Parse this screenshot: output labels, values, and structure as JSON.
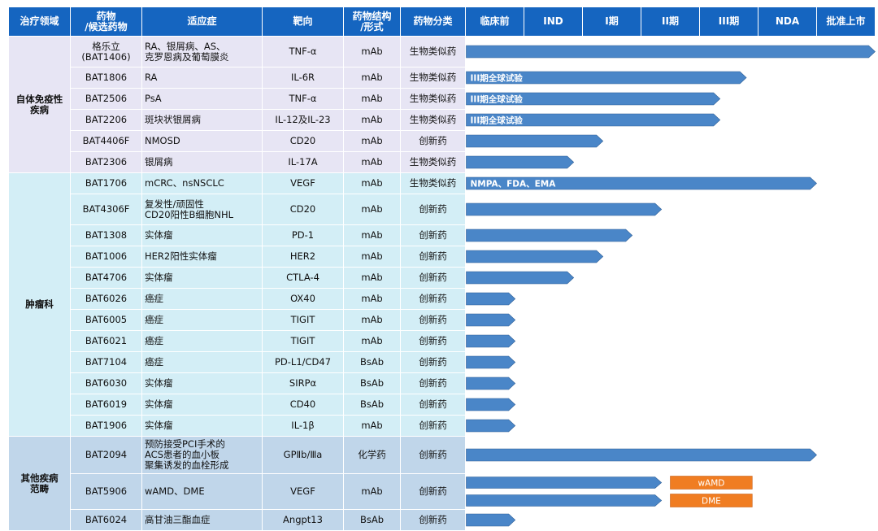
{
  "table": {
    "columns": [
      "治疗领域",
      "药物\n/候选药物",
      "适应症",
      "靶向",
      "药物结构\n/形式",
      "药物分类",
      "临床前",
      "IND",
      "I期",
      "II期",
      "III期",
      "NDA",
      "批准上市"
    ],
    "groups": [
      {
        "area": "自体免疫性\n疾病",
        "cls": "g-auto"
      },
      {
        "area": "肿瘤科",
        "cls": "g-onc"
      },
      {
        "area": "其他疾病\n范畴",
        "cls": "g-oth"
      }
    ],
    "rows": [
      {
        "g": 0,
        "drug": "格乐立\n(BAT1406)",
        "indication": "RA、银屑病、AS、\n克罗恩病及葡萄膜炎",
        "target": "TNF-α",
        "form": "mAb",
        "category": "生物类似药",
        "h": "tall"
      },
      {
        "g": 0,
        "drug": "BAT1806",
        "indication": "RA",
        "target": "IL-6R",
        "form": "mAb",
        "category": "生物类似药"
      },
      {
        "g": 0,
        "drug": "BAT2506",
        "indication": "PsA",
        "target": "TNF-α",
        "form": "mAb",
        "category": "生物类似药"
      },
      {
        "g": 0,
        "drug": "BAT2206",
        "indication": "斑块状银屑病",
        "target": "IL-12及IL-23",
        "form": "mAb",
        "category": "生物类似药"
      },
      {
        "g": 0,
        "drug": "BAT4406F",
        "indication": "NMOSD",
        "target": "CD20",
        "form": "mAb",
        "category": "创新药"
      },
      {
        "g": 0,
        "drug": "BAT2306",
        "indication": "银屑病",
        "target": "IL-17A",
        "form": "mAb",
        "category": "生物类似药"
      },
      {
        "g": 1,
        "drug": "BAT1706",
        "indication": "mCRC、nsNSCLC",
        "target": "VEGF",
        "form": "mAb",
        "category": "生物类似药"
      },
      {
        "g": 1,
        "drug": "BAT4306F",
        "indication": "复发性/顽固性\nCD20阳性B细胞NHL",
        "target": "CD20",
        "form": "mAb",
        "category": "创新药",
        "h": "tall"
      },
      {
        "g": 1,
        "drug": "BAT1308",
        "indication": "实体瘤",
        "target": "PD-1",
        "form": "mAb",
        "category": "创新药"
      },
      {
        "g": 1,
        "drug": "BAT1006",
        "indication": "HER2阳性实体瘤",
        "target": "HER2",
        "form": "mAb",
        "category": "创新药"
      },
      {
        "g": 1,
        "drug": "BAT4706",
        "indication": "实体瘤",
        "target": "CTLA-4",
        "form": "mAb",
        "category": "创新药"
      },
      {
        "g": 1,
        "drug": "BAT6026",
        "indication": "癌症",
        "target": "OX40",
        "form": "mAb",
        "category": "创新药"
      },
      {
        "g": 1,
        "drug": "BAT6005",
        "indication": "癌症",
        "target": "TIGIT",
        "form": "mAb",
        "category": "创新药"
      },
      {
        "g": 1,
        "drug": "BAT6021",
        "indication": "癌症",
        "target": "TIGIT",
        "form": "mAb",
        "category": "创新药"
      },
      {
        "g": 1,
        "drug": "BAT7104",
        "indication": "癌症",
        "target": "PD-L1/CD47",
        "form": "BsAb",
        "category": "创新药"
      },
      {
        "g": 1,
        "drug": "BAT6030",
        "indication": "实体瘤",
        "target": "SIRPα",
        "form": "BsAb",
        "category": "创新药"
      },
      {
        "g": 1,
        "drug": "BAT6019",
        "indication": "实体瘤",
        "target": "CD40",
        "form": "BsAb",
        "category": "创新药"
      },
      {
        "g": 1,
        "drug": "BAT1906",
        "indication": "实体瘤",
        "target": "IL-1β",
        "form": "mAb",
        "category": "创新药"
      },
      {
        "g": 2,
        "drug": "BAT2094",
        "indication": "预防接受PCI手术的\nACS患者的血小板\n聚集诱发的血栓形成",
        "target": "GPⅡb/Ⅲa",
        "form": "化学药",
        "category": "创新药",
        "h": "tall2"
      },
      {
        "g": 2,
        "drug": "BAT5906",
        "indication": "wAMD、DME",
        "target": "VEGF",
        "form": "mAb",
        "category": "创新药",
        "h": "tall3"
      },
      {
        "g": 2,
        "drug": "BAT6024",
        "indication": "高甘油三酯血症",
        "target": "Angpt13",
        "form": "BsAb",
        "category": "创新药"
      }
    ]
  },
  "chart_data": {
    "type": "bar",
    "stages": [
      "临床前",
      "IND",
      "I期",
      "II期",
      "III期",
      "NDA",
      "批准上市"
    ],
    "bars": [
      {
        "row": 0,
        "end": 7.0,
        "label": ""
      },
      {
        "row": 1,
        "end": 4.8,
        "label": "III期全球试验"
      },
      {
        "row": 2,
        "end": 4.35,
        "label": "III期全球试验"
      },
      {
        "row": 3,
        "end": 4.35,
        "label": "III期全球试验"
      },
      {
        "row": 4,
        "end": 2.35,
        "label": ""
      },
      {
        "row": 5,
        "end": 1.85,
        "label": ""
      },
      {
        "row": 6,
        "end": 6.0,
        "label": "NMPA、FDA、EMA"
      },
      {
        "row": 7,
        "end": 3.35,
        "label": ""
      },
      {
        "row": 8,
        "end": 2.85,
        "label": ""
      },
      {
        "row": 9,
        "end": 2.35,
        "label": ""
      },
      {
        "row": 10,
        "end": 1.85,
        "label": ""
      },
      {
        "row": 11,
        "end": 0.85,
        "label": ""
      },
      {
        "row": 12,
        "end": 0.85,
        "label": ""
      },
      {
        "row": 13,
        "end": 0.85,
        "label": ""
      },
      {
        "row": 14,
        "end": 0.85,
        "label": ""
      },
      {
        "row": 15,
        "end": 0.85,
        "label": ""
      },
      {
        "row": 16,
        "end": 0.85,
        "label": ""
      },
      {
        "row": 17,
        "end": 0.85,
        "label": ""
      },
      {
        "row": 18,
        "end": 6.0,
        "label": ""
      },
      {
        "row": 19,
        "end": 3.35,
        "label": "",
        "lane": 0
      },
      {
        "row": 19,
        "end": 3.35,
        "label": "",
        "lane": 1
      },
      {
        "row": 20,
        "end": 0.85,
        "label": ""
      }
    ],
    "boxes": [
      {
        "row": 19,
        "lane": 0,
        "start": 3.5,
        "end": 4.9,
        "label": "wAMD"
      },
      {
        "row": 19,
        "lane": 1,
        "start": 3.5,
        "end": 4.9,
        "label": "DME"
      }
    ],
    "colors": {
      "bar": "#4a86c8",
      "bar_edge": "#2f5f96",
      "box": "#f07d22"
    }
  }
}
